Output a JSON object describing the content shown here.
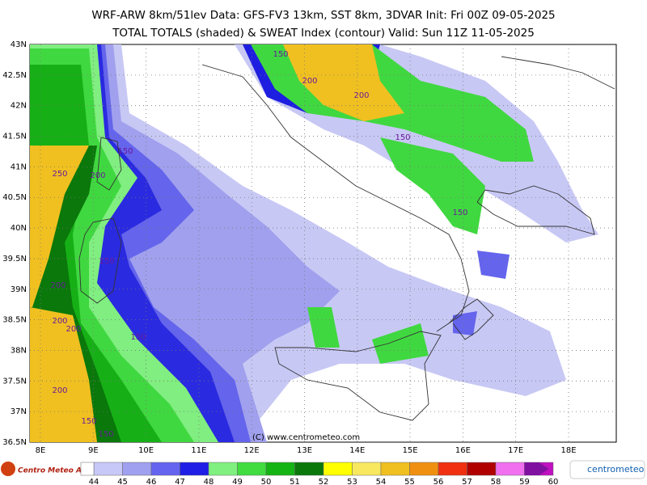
{
  "header": {
    "title": "WRF-ARW 8km/51lev  Data: GFS-FV3 13km, SST 8km, 3DVAR  Init: Fri 00Z 09-05-2025",
    "subtitle": "TOTAL TOTALS (shaded) & SWEAT Index (contour)  Valid: Sun 11Z 11-05-2025"
  },
  "map": {
    "lat_labels": [
      "43N",
      "42.5N",
      "42N",
      "41.5N",
      "41N",
      "40.5N",
      "40N",
      "39.5N",
      "39N",
      "38.5N",
      "38N",
      "37.5N",
      "37N",
      "36.5N"
    ],
    "lon_labels": [
      "8E",
      "9E",
      "10E",
      "11E",
      "12E",
      "13E",
      "14E",
      "15E",
      "16E",
      "17E",
      "18E"
    ],
    "contour_labels": [
      "150",
      "200",
      "200",
      "150",
      "150",
      "250",
      "200",
      "150",
      "150",
      "200",
      "200",
      "200",
      "150",
      "200",
      "150",
      "150"
    ],
    "copyright": "(C) www.centrometeo.com"
  },
  "colorbar": {
    "ticks": [
      "44",
      "45",
      "46",
      "47",
      "48",
      "49",
      "50",
      "51",
      "52",
      "53",
      "54",
      "55",
      "56",
      "57",
      "58",
      "59",
      "60"
    ],
    "colors": [
      "#c8c8f8",
      "#a0a0f0",
      "#6464f0",
      "#1e1ee6",
      "#80f080",
      "#40dc40",
      "#14b414",
      "#0a780a",
      "#ffff00",
      "#f8e860",
      "#f0c020",
      "#f09010",
      "#f03010",
      "#b00000",
      "#f070f0",
      "#c010c0",
      "#8010a0"
    ]
  },
  "logos": {
    "left": "Centro Meteo Aquilano",
    "right": "centrometeo"
  }
}
